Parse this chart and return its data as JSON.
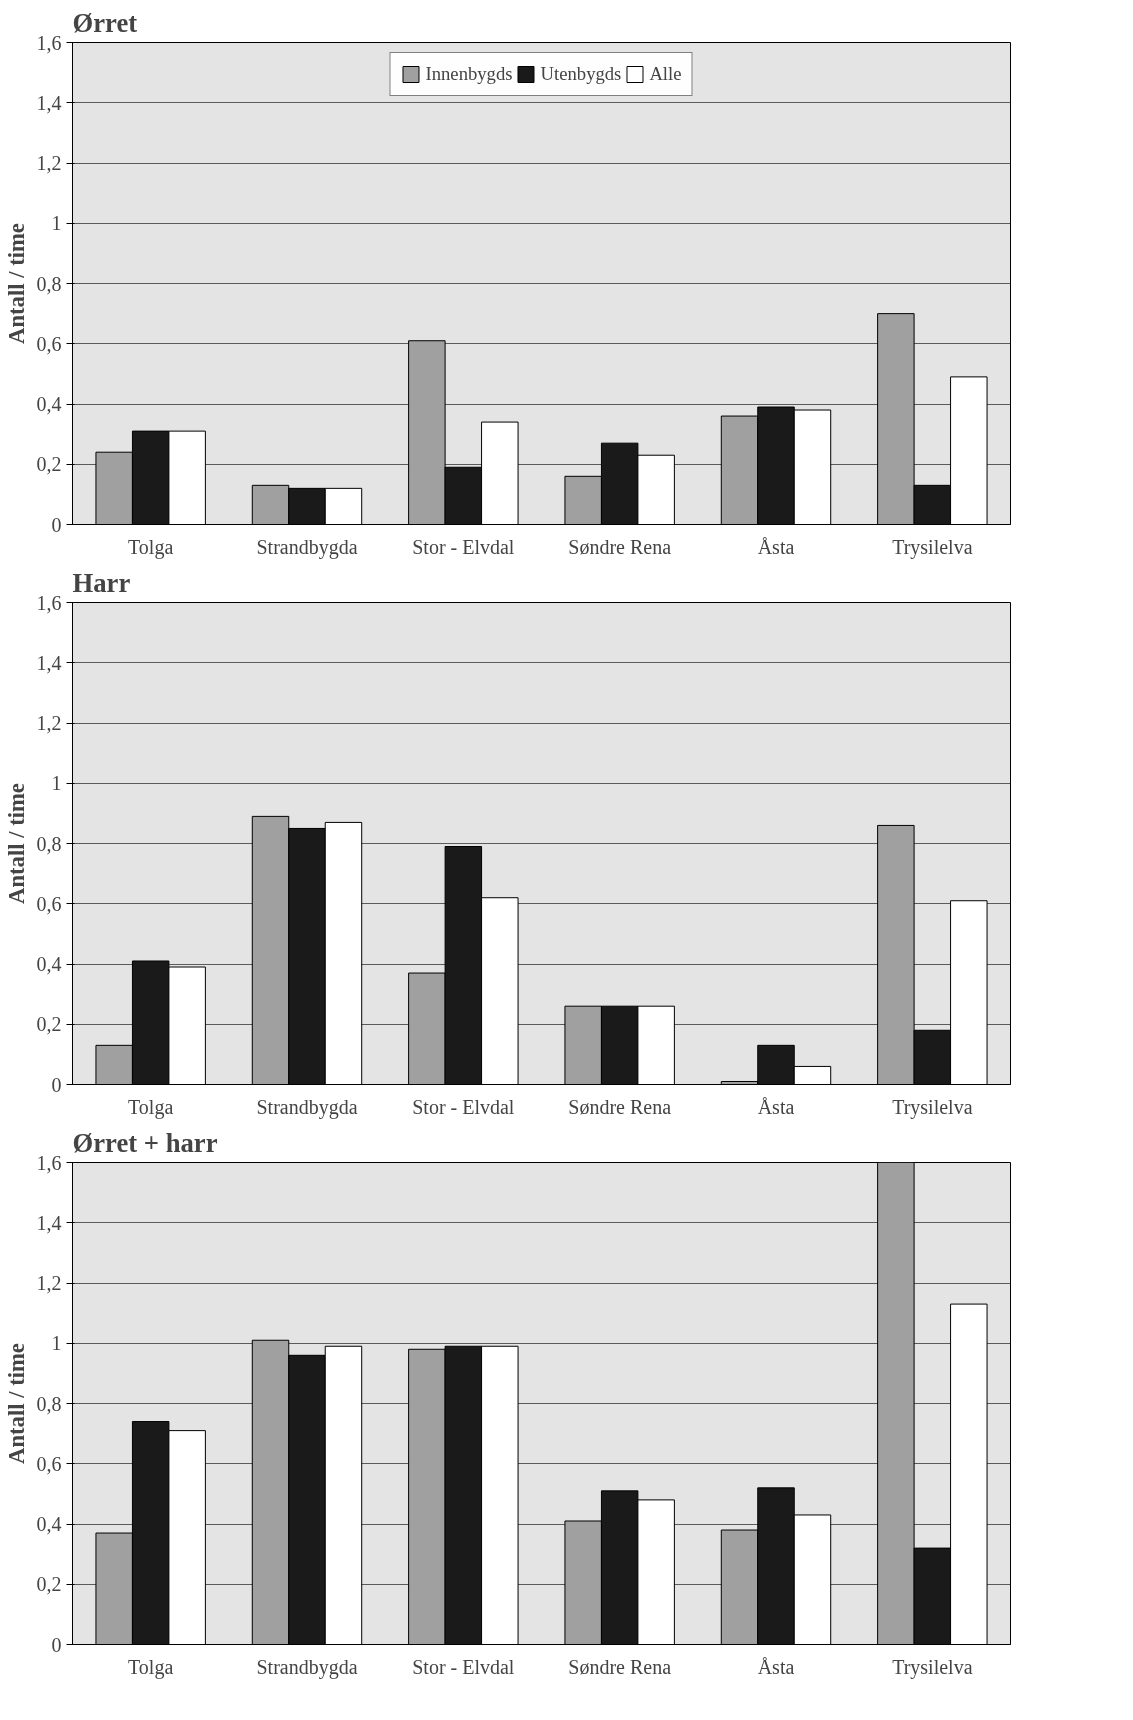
{
  "chart_data": [
    {
      "type": "bar",
      "title": "Ørret",
      "ylabel": "Antall / time",
      "categories": [
        "Tolga",
        "Strandbygda",
        "Stor - Elvdal",
        "Søndre Rena",
        "Åsta",
        "Trysilelva"
      ],
      "series": [
        {
          "name": "Innenbygds",
          "color": "#a0a0a0",
          "values": [
            0.24,
            0.13,
            0.61,
            0.16,
            0.36,
            0.7
          ]
        },
        {
          "name": "Utenbygds",
          "color": "#1a1a1a",
          "values": [
            0.31,
            0.12,
            0.19,
            0.27,
            0.39,
            0.13
          ]
        },
        {
          "name": "Alle",
          "color": "#ffffff",
          "values": [
            0.31,
            0.12,
            0.34,
            0.23,
            0.38,
            0.49
          ]
        }
      ],
      "ylim": [
        0,
        1.6
      ],
      "yticks": [
        0,
        {
          "value": 0.2,
          "label": "0,2"
        },
        {
          "value": 0.4,
          "label": "0,4"
        },
        {
          "value": 0.6,
          "label": "0,6"
        },
        {
          "value": 0.8,
          "label": "0,8"
        },
        1,
        {
          "value": 1.2,
          "label": "1,2"
        },
        {
          "value": 1.4,
          "label": "1,4"
        },
        {
          "value": 1.6,
          "label": "1,6"
        }
      ],
      "grid": "y",
      "legend": "top"
    },
    {
      "type": "bar",
      "title": "Harr",
      "ylabel": "Antall / time",
      "categories": [
        "Tolga",
        "Strandbygda",
        "Stor - Elvdal",
        "Søndre Rena",
        "Åsta",
        "Trysilelva"
      ],
      "series": [
        {
          "color": "#a0a0a0",
          "values": [
            0.13,
            0.89,
            0.37,
            0.26,
            0.01,
            0.86
          ]
        },
        {
          "color": "#1a1a1a",
          "values": [
            0.41,
            0.85,
            0.79,
            0.26,
            0.13,
            0.18
          ]
        },
        {
          "color": "#ffffff",
          "values": [
            0.39,
            0.87,
            0.62,
            0.26,
            0.06,
            0.61
          ]
        }
      ],
      "ylim": [
        0,
        1.6
      ],
      "yticks": [
        0,
        {
          "value": 0.2,
          "label": "0,2"
        },
        {
          "value": 0.4,
          "label": "0,4"
        },
        {
          "value": 0.6,
          "label": "0,6"
        },
        {
          "value": 0.8,
          "label": "0,8"
        },
        1,
        {
          "value": 1.2,
          "label": "1,2"
        },
        {
          "value": 1.4,
          "label": "1,4"
        },
        {
          "value": 1.6,
          "label": "1,6"
        }
      ],
      "grid": "y"
    },
    {
      "type": "bar",
      "title": "Ørret + harr",
      "ylabel": "Antall / time",
      "categories": [
        "Tolga",
        "Strandbygda",
        "Stor - Elvdal",
        "Søndre Rena",
        "Åsta",
        "Trysilelva"
      ],
      "series": [
        {
          "color": "#a0a0a0",
          "values": [
            0.37,
            1.01,
            0.98,
            0.41,
            0.38,
            1.6
          ]
        },
        {
          "color": "#1a1a1a",
          "values": [
            0.74,
            0.96,
            0.99,
            0.51,
            0.52,
            0.32
          ]
        },
        {
          "color": "#ffffff",
          "values": [
            0.71,
            0.99,
            0.99,
            0.48,
            0.43,
            1.13
          ]
        }
      ],
      "ylim": [
        0,
        1.6
      ],
      "yticks": [
        0,
        {
          "value": 0.2,
          "label": "0,2"
        },
        {
          "value": 0.4,
          "label": "0,4"
        },
        {
          "value": 0.6,
          "label": "0,6"
        },
        {
          "value": 0.8,
          "label": "0,8"
        },
        1,
        {
          "value": 1.2,
          "label": "1,2"
        },
        {
          "value": 1.4,
          "label": "1,4"
        },
        {
          "value": 1.6,
          "label": "1,6"
        }
      ],
      "grid": "y"
    }
  ]
}
